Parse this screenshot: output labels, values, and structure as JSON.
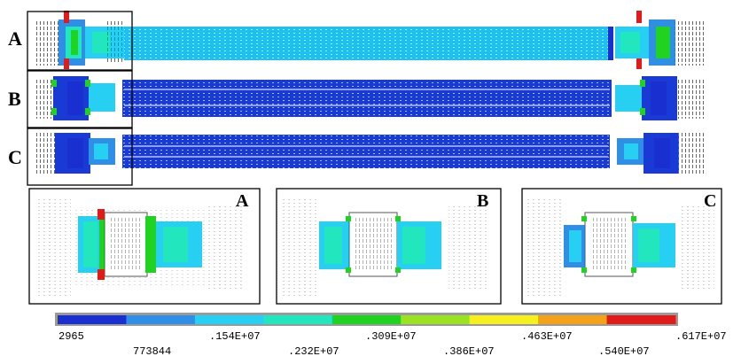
{
  "rows": [
    {
      "label": "A",
      "bar_color": "#21bff0",
      "dots": "#e9f8ff"
    },
    {
      "label": "B",
      "bar_color": "#1a3ad6",
      "dots": "#b9c6ff"
    },
    {
      "label": "C",
      "bar_color": "#1a3ad6",
      "dots": "#b9c6ff"
    }
  ],
  "zoom_labels": [
    "A",
    "B",
    "C"
  ],
  "legend": {
    "colors": [
      "#1a2fd0",
      "#2f8ee6",
      "#27d0f2",
      "#22e6bd",
      "#21d321",
      "#9be321",
      "#f5f01e",
      "#f6a11a",
      "#e11a1a"
    ],
    "ticks": [
      "2965",
      "773844",
      ".154E+07",
      ".232E+07",
      ".309E+07",
      ".386E+07",
      ".463E+07",
      ".540E+07",
      ".617E+07"
    ]
  }
}
